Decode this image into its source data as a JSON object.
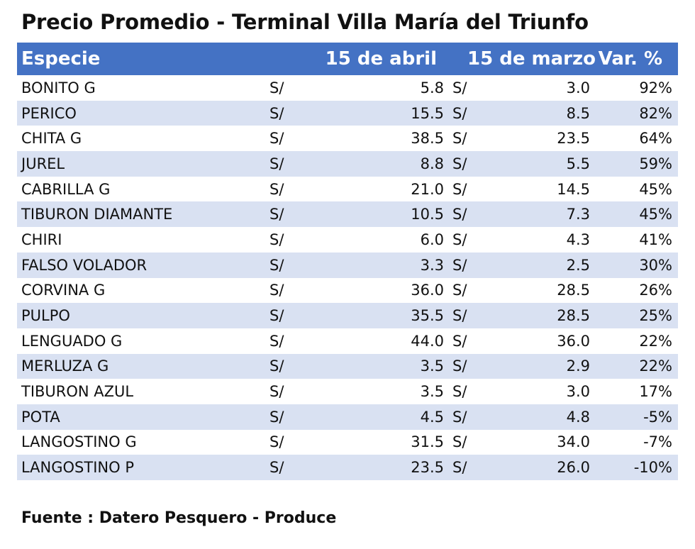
{
  "title": "Precio Promedio - Terminal Villa María del Triunfo",
  "header": {
    "especie": "Especie",
    "abril": "15 de abril",
    "marzo": "15 de marzo",
    "var": "Var. %"
  },
  "currency": "S/",
  "rows": [
    {
      "especie": "BONITO G",
      "abril": "5.8",
      "marzo": "3.0",
      "var": "92%"
    },
    {
      "especie": "PERICO",
      "abril": "15.5",
      "marzo": "8.5",
      "var": "82%"
    },
    {
      "especie": "CHITA G",
      "abril": "38.5",
      "marzo": "23.5",
      "var": "64%"
    },
    {
      "especie": "JUREL",
      "abril": "8.8",
      "marzo": "5.5",
      "var": "59%"
    },
    {
      "especie": "CABRILLA G",
      "abril": "21.0",
      "marzo": "14.5",
      "var": "45%"
    },
    {
      "especie": "TIBURON DIAMANTE",
      "abril": "10.5",
      "marzo": "7.3",
      "var": "45%"
    },
    {
      "especie": "CHIRI",
      "abril": "6.0",
      "marzo": "4.3",
      "var": "41%"
    },
    {
      "especie": "FALSO VOLADOR",
      "abril": "3.3",
      "marzo": "2.5",
      "var": "30%"
    },
    {
      "especie": "CORVINA G",
      "abril": "36.0",
      "marzo": "28.5",
      "var": "26%"
    },
    {
      "especie": "PULPO",
      "abril": "35.5",
      "marzo": "28.5",
      "var": "25%"
    },
    {
      "especie": "LENGUADO G",
      "abril": "44.0",
      "marzo": "36.0",
      "var": "22%"
    },
    {
      "especie": "MERLUZA G",
      "abril": "3.5",
      "marzo": "2.9",
      "var": "22%"
    },
    {
      "especie": "TIBURON AZUL",
      "abril": "3.5",
      "marzo": "3.0",
      "var": "17%"
    },
    {
      "especie": "POTA",
      "abril": "4.5",
      "marzo": "4.8",
      "var": "-5%"
    },
    {
      "especie": "LANGOSTINO G",
      "abril": "31.5",
      "marzo": "34.0",
      "var": "-7%"
    },
    {
      "especie": "LANGOSTINO P",
      "abril": "23.5",
      "marzo": "26.0",
      "var": "-10%"
    }
  ],
  "source": "Fuente : Datero Pesquero - Produce",
  "colors": {
    "header_bg": "#4472c4",
    "band": "#d9e1f2"
  }
}
